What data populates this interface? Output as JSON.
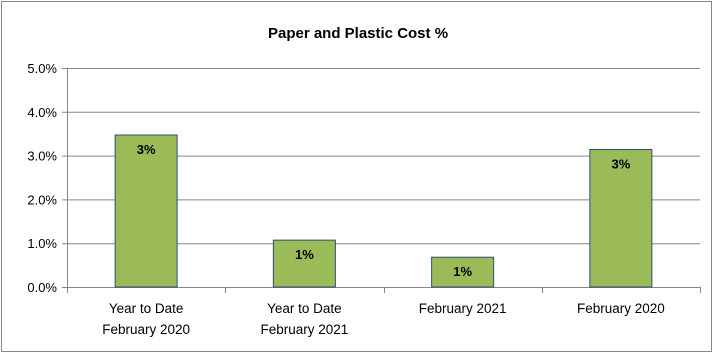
{
  "chart_data": {
    "type": "bar",
    "title": "Paper and Plastic Cost  %",
    "categories": [
      [
        "Year to Date",
        "February 2020"
      ],
      [
        "Year to Date",
        "February 2021"
      ],
      [
        "February 2021"
      ],
      [
        "February 2020"
      ]
    ],
    "values": [
      3.47,
      1.07,
      0.68,
      3.14
    ],
    "data_labels": [
      "3%",
      "1%",
      "1%",
      "3%"
    ],
    "ylim": [
      0,
      5
    ],
    "yticks": [
      "0.0%",
      "1.0%",
      "2.0%",
      "3.0%",
      "4.0%",
      "5.0%"
    ],
    "ytick_values": [
      0,
      1,
      2,
      3,
      4,
      5
    ],
    "grid": true,
    "legend": "none",
    "colors": {
      "bar_fill": "#9BBB59",
      "bar_stroke": "#2C4D75",
      "grid": "#868686",
      "border": "#868686"
    }
  }
}
